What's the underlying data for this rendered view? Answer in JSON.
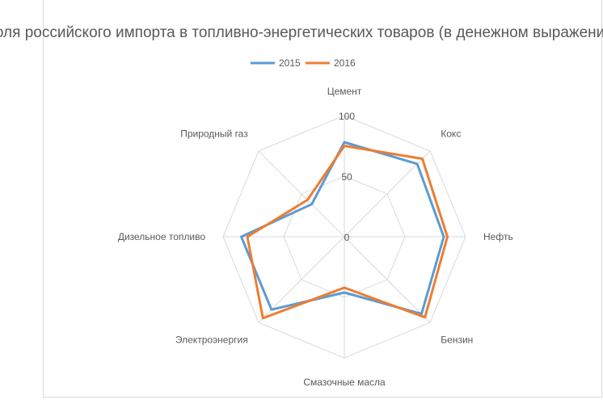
{
  "chart_data": {
    "type": "radar",
    "title": "Доля российского импорта в топливно-энергетических товаров (в денежном выражении)",
    "categories": [
      "Цемент",
      "Кокс",
      "Нефть",
      "Бензин",
      "Смазочные масла",
      "Электроэнергия",
      "Дизельное топливо",
      "Природный газ"
    ],
    "series": [
      {
        "name": "2015",
        "values": [
          78,
          85,
          82,
          90,
          46,
          85,
          85,
          38
        ]
      },
      {
        "name": "2016",
        "values": [
          75,
          91,
          85,
          94,
          42,
          95,
          80,
          43
        ]
      }
    ],
    "ticks": [
      "0",
      "50",
      "100"
    ],
    "range": [
      0,
      100
    ],
    "legend_position": "top",
    "grid": true,
    "colors": {
      "2015": "#5b9bd5",
      "2016": "#ed7d31",
      "grid": "#d9d9d9",
      "text": "#595959"
    }
  }
}
